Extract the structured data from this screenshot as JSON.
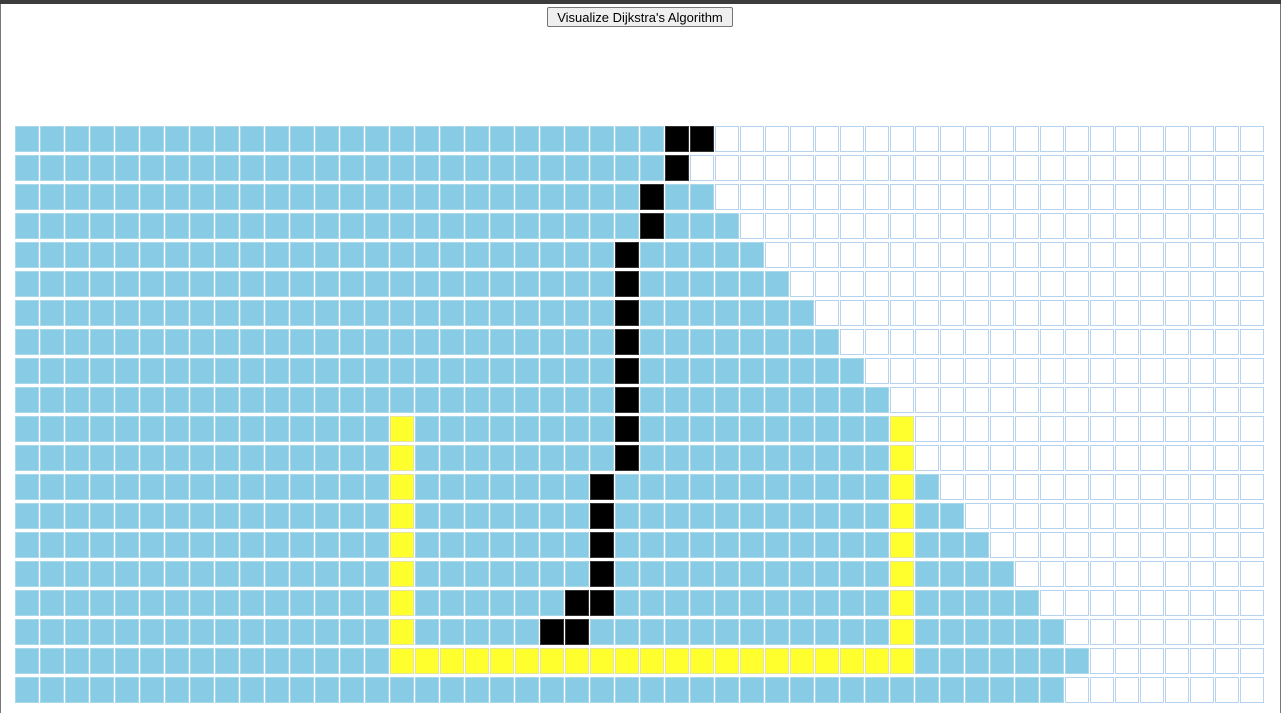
{
  "button": {
    "label": "Visualize Dijkstra's Algorithm"
  }
}
